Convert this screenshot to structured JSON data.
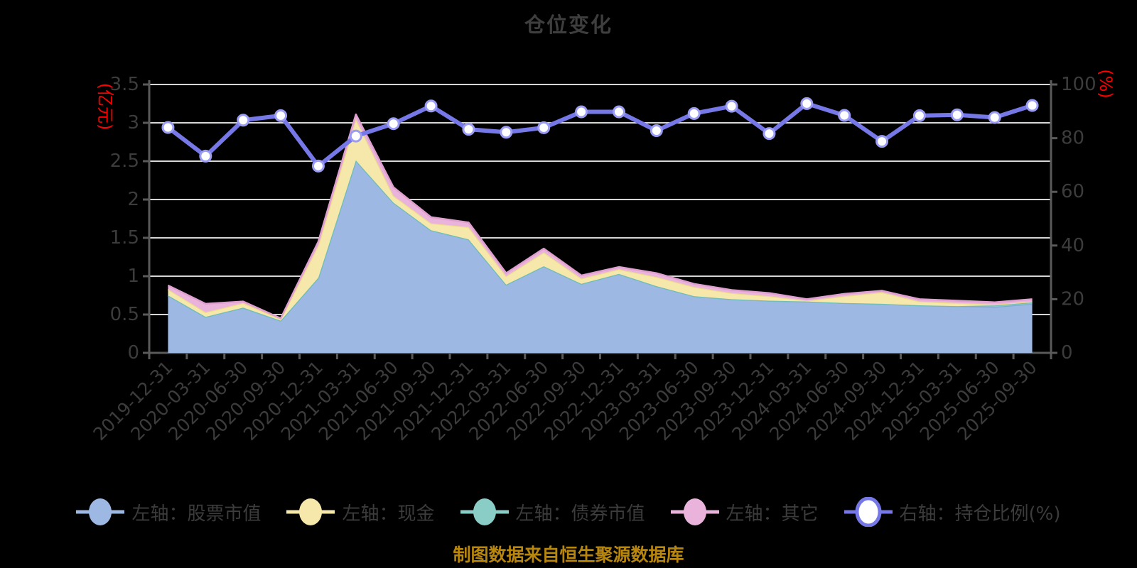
{
  "title": "仓位变化",
  "source_note": "制图数据来自恒生聚源数据库",
  "colors": {
    "title_text": "#3E3E3E",
    "axis_text": "#3C3C3C",
    "axis_name_red": "#FF0000",
    "axis_line": "#5A5A5A",
    "gridline": "#D6D6D6",
    "source_text": "#B8860B",
    "ratio_point_ring": "#9B9CF3"
  },
  "chart_data": {
    "type": "area",
    "title": "仓位变化",
    "grid": true,
    "legend_position": "bottom",
    "left_axis": {
      "name": "(亿元)",
      "min": 0,
      "max": 3.5,
      "tick_step": 0.5
    },
    "right_axis": {
      "name": "(%)",
      "min": 0,
      "max": 100,
      "tick_step": 20
    },
    "x": [
      "2019-12-31",
      "2020-03-31",
      "2020-06-30",
      "2020-09-30",
      "2020-12-31",
      "2021-03-31",
      "2021-06-30",
      "2021-09-30",
      "2021-12-31",
      "2022-03-31",
      "2022-06-30",
      "2022-09-30",
      "2022-12-31",
      "2023-03-31",
      "2023-06-30",
      "2023-09-30",
      "2023-12-31",
      "2024-03-31",
      "2024-06-30",
      "2024-09-30",
      "2024-12-31",
      "2025-03-31",
      "2025-06-30",
      "2025-09-30"
    ],
    "series": [
      {
        "key": "stock",
        "name": "左轴：股票市值",
        "type": "area",
        "axis": "left",
        "stack_order": 0,
        "color": "#9CB8E3",
        "edge_color": "#86A6D6",
        "values": [
          0.75,
          0.47,
          0.59,
          0.42,
          0.98,
          2.51,
          1.96,
          1.6,
          1.48,
          0.89,
          1.13,
          0.9,
          1.03,
          0.87,
          0.74,
          0.7,
          0.68,
          0.67,
          0.65,
          0.64,
          0.62,
          0.61,
          0.6,
          0.64
        ]
      },
      {
        "key": "cash",
        "name": "左轴：现金",
        "type": "area",
        "axis": "left",
        "stack_order": 2,
        "color": "#F6E8AB",
        "edge_color": "#EDDC8E",
        "values": [
          0.08,
          0.06,
          0.06,
          0.02,
          0.42,
          0.54,
          0.09,
          0.09,
          0.16,
          0.11,
          0.18,
          0.07,
          0.06,
          0.12,
          0.12,
          0.08,
          0.06,
          0.01,
          0.09,
          0.15,
          0.05,
          0.04,
          0.01,
          0.01
        ]
      },
      {
        "key": "bond",
        "name": "左轴：债券市值",
        "type": "area",
        "axis": "left",
        "stack_order": 1,
        "color": "#8ACDC7",
        "edge_color": "#6FBEB7",
        "values": [
          0,
          0,
          0,
          0,
          0,
          0,
          0,
          0,
          0,
          0,
          0,
          0,
          0,
          0,
          0,
          0,
          0,
          0,
          0,
          0,
          0,
          0,
          0.02,
          0.02
        ]
      },
      {
        "key": "other",
        "name": "左轴：其它",
        "type": "area",
        "axis": "left",
        "stack_order": 3,
        "color": "#E9B3DB",
        "edge_color": "#DFA0D0",
        "values": [
          0.05,
          0.11,
          0.02,
          0.01,
          0.05,
          0.06,
          0.11,
          0.08,
          0.06,
          0.04,
          0.05,
          0.04,
          0.03,
          0.05,
          0.04,
          0.04,
          0.04,
          0.02,
          0.03,
          0.02,
          0.03,
          0.03,
          0.03,
          0.03
        ]
      },
      {
        "key": "ratio",
        "name": "右轴：持仓比例(%)",
        "type": "line",
        "axis": "right",
        "color": "#7678E8",
        "point_fill": "#FFFFFF",
        "values": [
          84.0,
          73.3,
          86.7,
          88.4,
          69.6,
          80.8,
          85.4,
          92.0,
          83.3,
          82.2,
          83.9,
          89.8,
          89.8,
          82.8,
          89.2,
          91.9,
          81.7,
          92.9,
          88.5,
          78.8,
          88.4,
          88.7,
          87.7,
          92.2
        ]
      }
    ]
  }
}
